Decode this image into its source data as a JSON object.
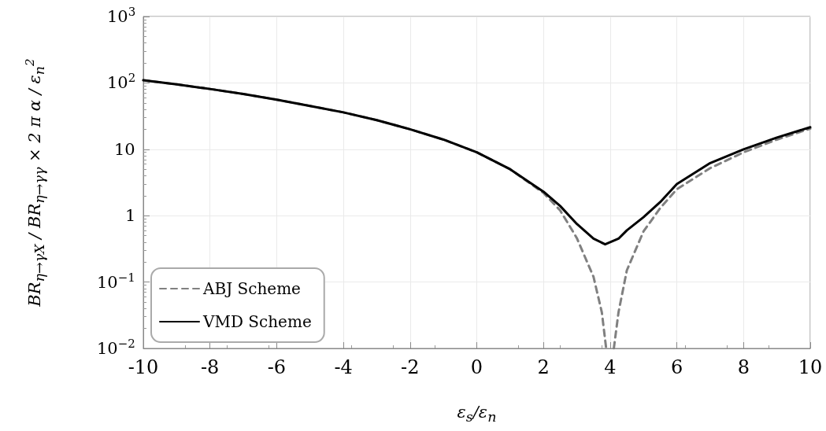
{
  "chart_data": {
    "type": "line",
    "xlabel": "ε$_{s}$/ε$_{n}$",
    "ylabel": "BR$_{η→γX}$ / BR$_{η→γγ}$ × 2 π α / ε$_{n}$$^{2}$",
    "series": [
      {
        "name": "ABJ Scheme",
        "color": "#808080",
        "line_style": "dashed",
        "x": [
          -10,
          -9,
          -8,
          -7,
          -6,
          -5,
          -4,
          -3,
          -2,
          -1,
          0,
          1,
          2,
          2.5,
          3,
          3.5,
          3.75,
          3.88,
          4,
          4.11,
          4.25,
          4.5,
          5,
          5.5,
          6,
          7,
          8,
          9,
          10
        ],
        "values": [
          110,
          95,
          81,
          68,
          56,
          45,
          36,
          27.5,
          20,
          14,
          9,
          5,
          2.2,
          1.2,
          0.46,
          0.12,
          0.035,
          0.01,
          null,
          0.01,
          0.035,
          0.15,
          0.58,
          1.3,
          2.5,
          5.2,
          9,
          14,
          20.5
        ]
      },
      {
        "name": "VMD Scheme",
        "color": "#000000",
        "line_style": "solid",
        "x": [
          -10,
          -9,
          -8,
          -7,
          -6,
          -5,
          -4,
          -3,
          -2,
          -1,
          0,
          1,
          2,
          2.5,
          3,
          3.5,
          3.85,
          4.25,
          4.5,
          5,
          5.5,
          6,
          7,
          8,
          9,
          10
        ],
        "values": [
          110,
          95,
          81,
          68,
          56,
          45,
          36,
          27.5,
          20,
          14,
          9,
          5,
          2.3,
          1.4,
          0.75,
          0.45,
          0.37,
          0.45,
          0.6,
          0.95,
          1.6,
          3.0,
          6.2,
          10,
          15,
          21.5
        ]
      }
    ],
    "xlim": [
      -10,
      10
    ],
    "xticks": [
      -10,
      -8,
      -6,
      -4,
      -2,
      0,
      2,
      4,
      6,
      8,
      10
    ],
    "ylim": [
      0.01,
      1000
    ],
    "yticks": [
      {
        "value": 0.01,
        "label": "10$^{−2}$"
      },
      {
        "value": 0.1,
        "label": "10$^{−1}$"
      },
      1,
      10,
      {
        "value": 100,
        "label": "10$^{2}$"
      },
      {
        "value": 1000,
        "label": "10$^{3}$"
      }
    ],
    "log": "y",
    "grid": true,
    "legend": "bottom left",
    "marker": "none"
  }
}
